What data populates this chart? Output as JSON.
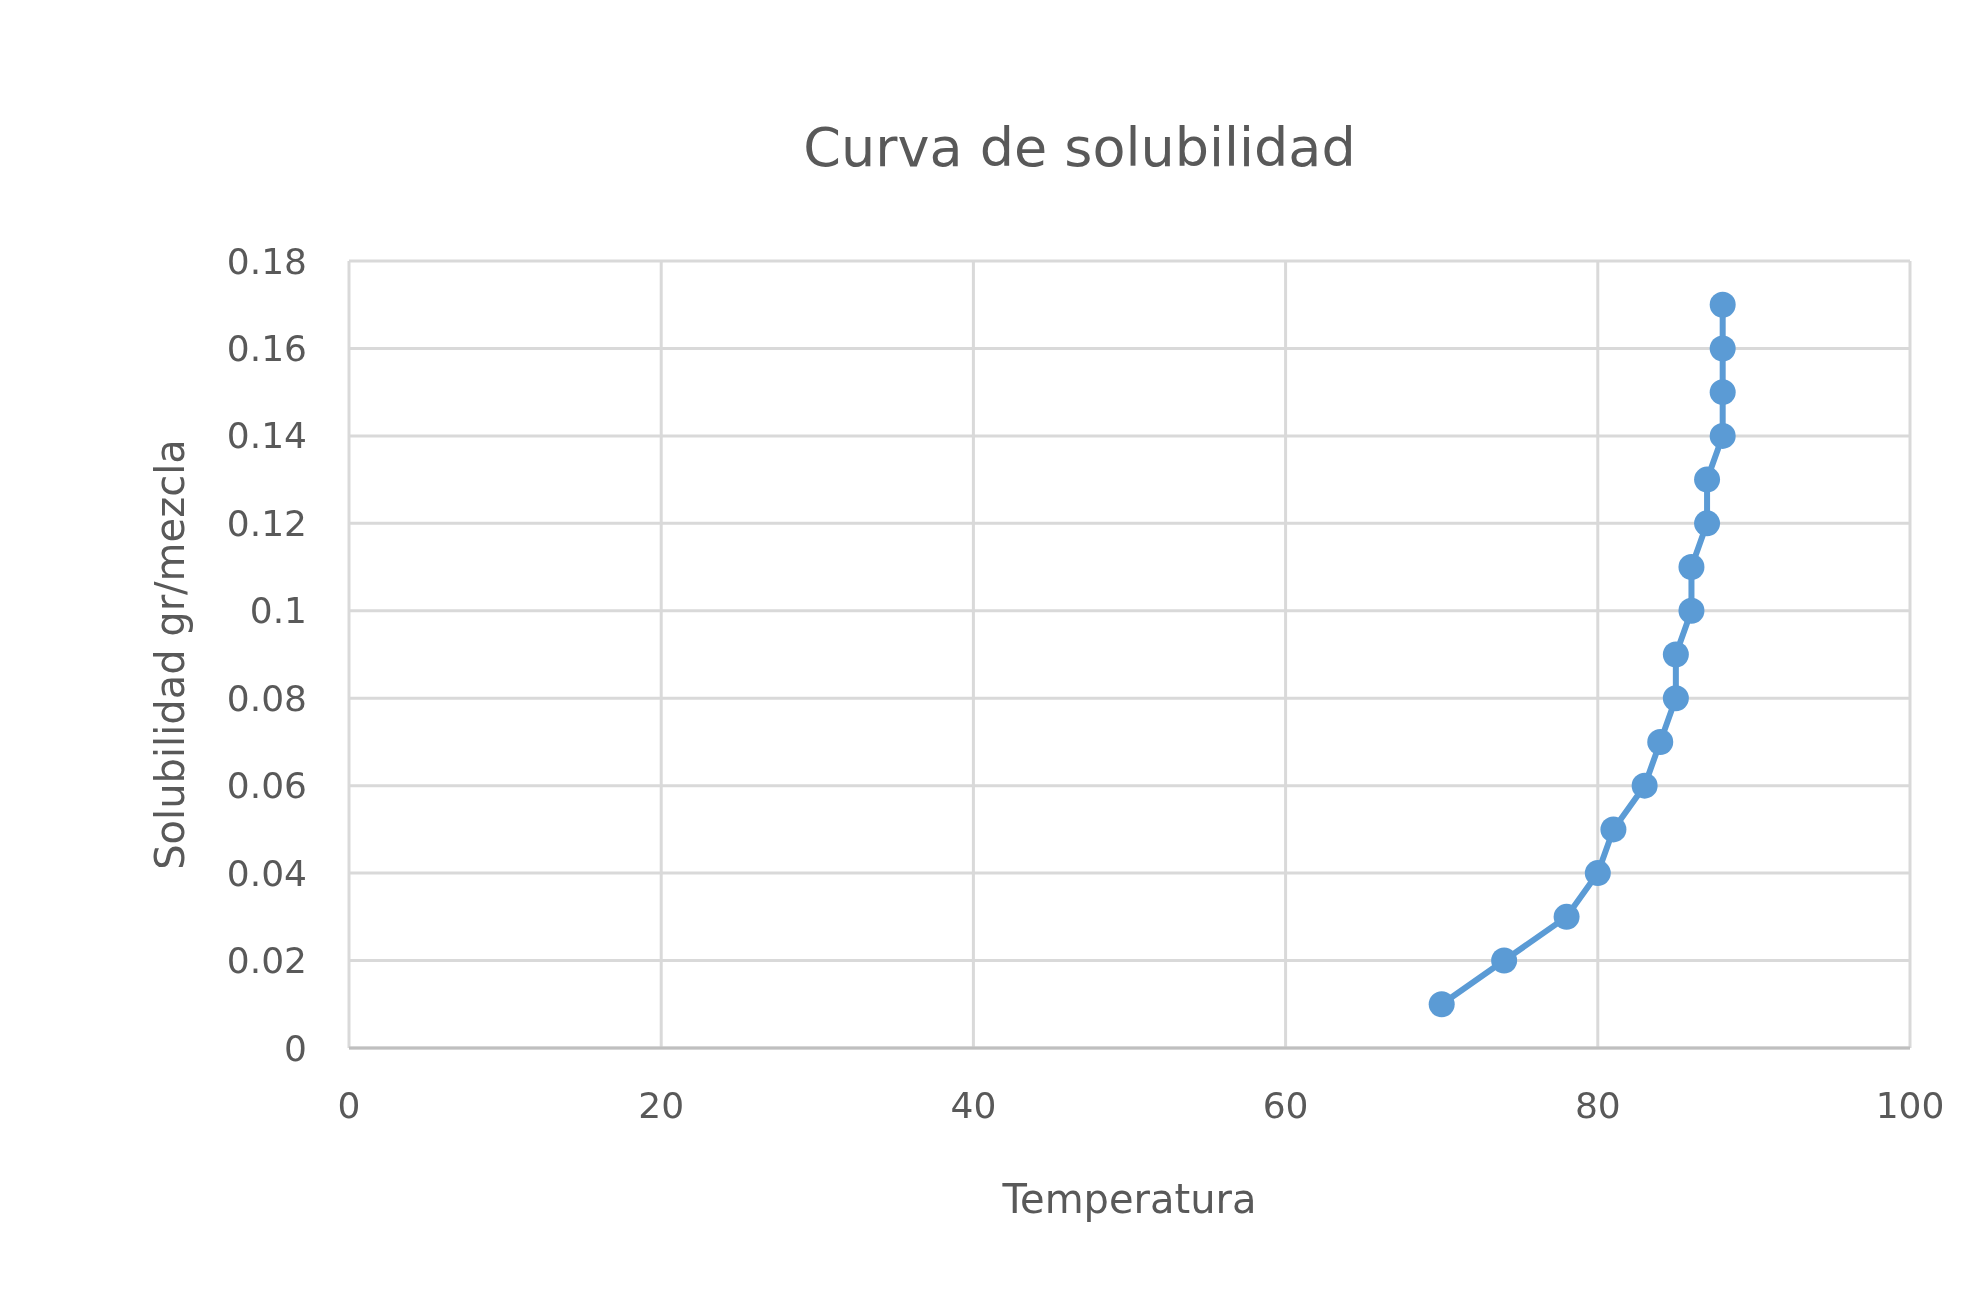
{
  "chart_data": {
    "type": "line",
    "title": "Curva de solubilidad",
    "xlabel": "Temperatura",
    "ylabel": "Solubilidad gr/mezcla",
    "x": [
      70,
      74,
      78,
      80,
      81,
      83,
      84,
      85,
      85,
      86,
      86,
      87,
      87,
      88,
      88,
      88,
      88
    ],
    "series": [
      {
        "color": "#5b9bd5",
        "values": [
          0.01,
          0.02,
          0.03,
          0.04,
          0.05,
          0.06,
          0.07,
          0.08,
          0.09,
          0.1,
          0.11,
          0.12,
          0.13,
          0.14,
          0.15,
          0.16,
          0.17
        ]
      }
    ],
    "xlim": [
      0,
      100
    ],
    "xticks": [
      0,
      20,
      40,
      60,
      80,
      100
    ],
    "ylim": [
      0,
      0.18
    ],
    "yticks": [
      0,
      0.02,
      0.04,
      0.06,
      0.08,
      {
        "value": 0.1,
        "label": "0.1"
      },
      0.12,
      0.14,
      0.16,
      0.18
    ],
    "grid": true,
    "marker": "circle",
    "line_style": "solid"
  }
}
